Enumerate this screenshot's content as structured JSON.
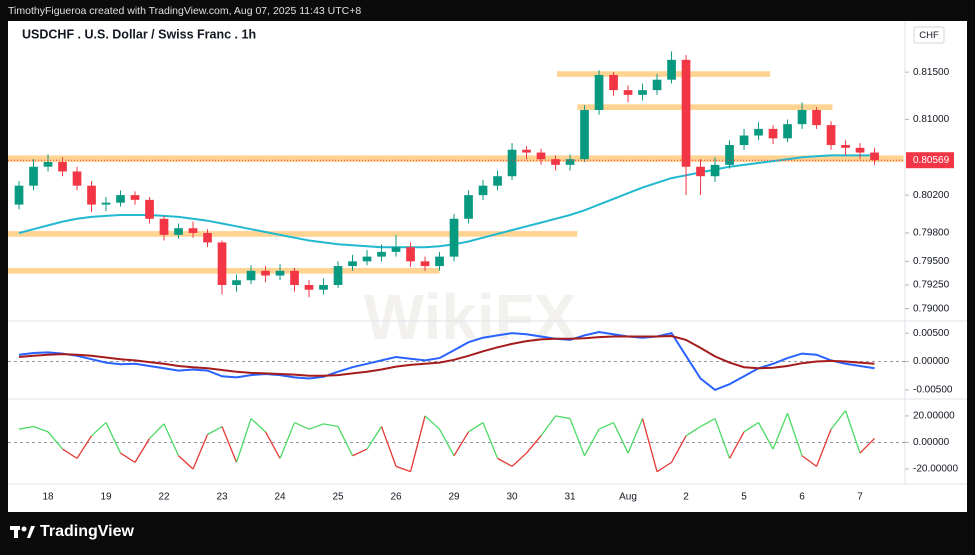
{
  "header": "TimothyFigueroa created with TradingView.com, Aug 07, 2025 11:43 UTC+8",
  "footer": "TradingView",
  "watermark": "WikiFX",
  "currency": "CHF",
  "chart_data": [
    {
      "type": "candlestick",
      "title": "USDCHF . U.S. Dollar / Swiss Franc . 1h",
      "up_color": "#089981",
      "down_color": "#f23645",
      "x": [
        -2,
        -1,
        0,
        1,
        2,
        3,
        4,
        5,
        6,
        7,
        8,
        9,
        10,
        11,
        12,
        13,
        14,
        15,
        16,
        17,
        18,
        19,
        20,
        21,
        22,
        23,
        24,
        25,
        26,
        27,
        28,
        29,
        30,
        31,
        32,
        33,
        34,
        35,
        36,
        37,
        38,
        39,
        40,
        41,
        42,
        43,
        44,
        45,
        46,
        47,
        48,
        49,
        50,
        51,
        52,
        53,
        54,
        55,
        56,
        57
      ],
      "open": [
        0.801,
        0.803,
        0.805,
        0.8055,
        0.8045,
        0.803,
        0.801,
        0.8012,
        0.802,
        0.8015,
        0.7995,
        0.7978,
        0.7985,
        0.798,
        0.797,
        0.7925,
        0.793,
        0.794,
        0.7935,
        0.794,
        0.7925,
        0.792,
        0.7925,
        0.7945,
        0.795,
        0.7955,
        0.796,
        0.7965,
        0.795,
        0.7945,
        0.7955,
        0.7995,
        0.802,
        0.803,
        0.804,
        0.8068,
        0.8065,
        0.8058,
        0.8052,
        0.8058,
        0.811,
        0.8147,
        0.8131,
        0.8126,
        0.8131,
        0.8142,
        0.8163,
        0.805,
        0.804,
        0.8052,
        0.8073,
        0.8083,
        0.809,
        0.808,
        0.8095,
        0.811,
        0.8094,
        0.8073,
        0.807,
        0.8065
      ],
      "high": [
        0.8035,
        0.8058,
        0.8063,
        0.806,
        0.805,
        0.8035,
        0.8018,
        0.8025,
        0.8024,
        0.8018,
        0.7998,
        0.799,
        0.7992,
        0.7984,
        0.7972,
        0.7936,
        0.7946,
        0.7945,
        0.7947,
        0.7943,
        0.793,
        0.7932,
        0.795,
        0.7957,
        0.7962,
        0.7968,
        0.7978,
        0.797,
        0.7955,
        0.796,
        0.8,
        0.8025,
        0.8036,
        0.8046,
        0.8075,
        0.8072,
        0.8069,
        0.8062,
        0.8063,
        0.8115,
        0.8152,
        0.815,
        0.8136,
        0.8138,
        0.8148,
        0.8172,
        0.8168,
        0.8058,
        0.806,
        0.8078,
        0.809,
        0.8097,
        0.8094,
        0.81,
        0.8118,
        0.8113,
        0.8098,
        0.8078,
        0.8075,
        0.807
      ],
      "low": [
        0.8005,
        0.8025,
        0.8045,
        0.804,
        0.8025,
        0.8002,
        0.8003,
        0.8008,
        0.801,
        0.799,
        0.7972,
        0.7974,
        0.7975,
        0.7965,
        0.7915,
        0.7918,
        0.7926,
        0.7928,
        0.793,
        0.7918,
        0.7912,
        0.7915,
        0.7922,
        0.794,
        0.7946,
        0.795,
        0.7955,
        0.7944,
        0.794,
        0.794,
        0.795,
        0.799,
        0.8015,
        0.8025,
        0.8036,
        0.8058,
        0.8052,
        0.8046,
        0.8046,
        0.8055,
        0.8105,
        0.8125,
        0.8118,
        0.812,
        0.8126,
        0.8138,
        0.802,
        0.802,
        0.8034,
        0.8048,
        0.8068,
        0.8078,
        0.8074,
        0.8076,
        0.809,
        0.809,
        0.8068,
        0.8062,
        0.8058,
        0.8052
      ],
      "close": [
        0.803,
        0.805,
        0.8055,
        0.8045,
        0.803,
        0.801,
        0.8012,
        0.802,
        0.8015,
        0.7995,
        0.7978,
        0.7985,
        0.798,
        0.797,
        0.7925,
        0.793,
        0.794,
        0.7935,
        0.794,
        0.7925,
        0.792,
        0.7925,
        0.7945,
        0.795,
        0.7955,
        0.796,
        0.7965,
        0.795,
        0.7945,
        0.7955,
        0.7995,
        0.802,
        0.803,
        0.804,
        0.8068,
        0.8065,
        0.8058,
        0.8052,
        0.8058,
        0.811,
        0.8147,
        0.8131,
        0.8126,
        0.8131,
        0.8142,
        0.8163,
        0.805,
        0.804,
        0.8052,
        0.8073,
        0.8083,
        0.809,
        0.808,
        0.8095,
        0.811,
        0.8094,
        0.8073,
        0.807,
        0.8065,
        0.8057
      ],
      "ma": {
        "color": "#22b8cf",
        "values": [
          0.798,
          0.7984,
          0.7988,
          0.7992,
          0.7995,
          0.7997,
          0.7998,
          0.7999,
          0.7999,
          0.7999,
          0.7998,
          0.7997,
          0.7995,
          0.7993,
          0.799,
          0.7987,
          0.7984,
          0.7981,
          0.7978,
          0.7975,
          0.7972,
          0.797,
          0.7968,
          0.7967,
          0.7966,
          0.7965,
          0.7965,
          0.7965,
          0.7965,
          0.7966,
          0.7968,
          0.7971,
          0.7975,
          0.7979,
          0.7983,
          0.7987,
          0.7991,
          0.7995,
          0.7999,
          0.8004,
          0.801,
          0.8016,
          0.8022,
          0.8028,
          0.8033,
          0.8038,
          0.8041,
          0.8044,
          0.8047,
          0.805,
          0.8052,
          0.8054,
          0.8056,
          0.8058,
          0.806,
          0.8061,
          0.8062,
          0.8062,
          0.8062,
          0.8062
        ]
      },
      "zones": [
        {
          "x": [
            35.1,
            49.8
          ],
          "y": [
            0.8145,
            0.8151
          ]
        },
        {
          "x": [
            36.5,
            54.1
          ],
          "y": [
            0.811,
            0.8116
          ]
        },
        {
          "x": [
            -2.76,
            59
          ],
          "y": [
            0.8055,
            0.8062
          ]
        },
        {
          "x": [
            -2.76,
            36.5
          ],
          "y": [
            0.7976,
            0.7982
          ]
        },
        {
          "x": [
            -2.76,
            27
          ],
          "y": [
            0.7937,
            0.7943
          ]
        }
      ],
      "zone_color": "#ffcc80",
      "last_price": 0.80569,
      "last_price_color": "#f23645",
      "xlim": [
        -2.76,
        59.1
      ],
      "xticks": [
        {
          "value": 0,
          "label": "18"
        },
        {
          "value": 4,
          "label": "19"
        },
        {
          "value": 8,
          "label": "22"
        },
        {
          "value": 12,
          "label": "23"
        },
        {
          "value": 16,
          "label": "24"
        },
        {
          "value": 20,
          "label": "25"
        },
        {
          "value": 24,
          "label": "26"
        },
        {
          "value": 28,
          "label": "29"
        },
        {
          "value": 32,
          "label": "30"
        },
        {
          "value": 36,
          "label": "31"
        },
        {
          "value": 40,
          "label": "Aug"
        },
        {
          "value": 44,
          "label": "2"
        },
        {
          "value": 48,
          "label": "5"
        },
        {
          "value": 52,
          "label": "6"
        },
        {
          "value": 56,
          "label": "7"
        }
      ],
      "ylim": [
        0.7888,
        0.8203
      ],
      "yticks": [
        {
          "value": 0.815,
          "label": "0.81500"
        },
        {
          "value": 0.81,
          "label": "0.81000"
        },
        {
          "value": 0.802,
          "label": "0.80200"
        },
        {
          "value": 0.798,
          "label": "0.79800"
        },
        {
          "value": 0.795,
          "label": "0.79500"
        },
        {
          "value": 0.7925,
          "label": "0.79250"
        },
        {
          "value": 0.79,
          "label": "0.79000"
        }
      ]
    },
    {
      "type": "line",
      "series": [
        {
          "color": "#2962ff",
          "values": [
            0.0012,
            0.0015,
            0.0016,
            0.0014,
            0.001,
            0.0004,
            -0.0002,
            -0.0005,
            -0.0004,
            -0.0008,
            -0.0012,
            -0.0016,
            -0.0014,
            -0.0016,
            -0.0026,
            -0.0028,
            -0.0024,
            -0.0022,
            -0.0024,
            -0.0028,
            -0.003,
            -0.0027,
            -0.0018,
            -0.001,
            -0.0004,
            0.0002,
            0.0008,
            0.0005,
            0.0002,
            0.0006,
            0.002,
            0.0034,
            0.0042,
            0.0046,
            0.005,
            0.0048,
            0.0044,
            0.004,
            0.0038,
            0.0046,
            0.0052,
            0.0048,
            0.0044,
            0.0042,
            0.0044,
            0.005,
            0.001,
            -0.003,
            -0.005,
            -0.004,
            -0.0026,
            -0.0012,
            -0.0004,
            0.0006,
            0.0014,
            0.0012,
            0.0002,
            -0.0004,
            -0.0008,
            -0.0012
          ]
        },
        {
          "color": "#a51c1c",
          "values": [
            0.0008,
            0.001,
            0.0012,
            0.0013,
            0.0012,
            0.001,
            0.0007,
            0.0004,
            0.0002,
            -0.0001,
            -0.0004,
            -0.0008,
            -0.001,
            -0.0012,
            -0.0015,
            -0.0018,
            -0.002,
            -0.0021,
            -0.0022,
            -0.0023,
            -0.0025,
            -0.0025,
            -0.0024,
            -0.0021,
            -0.0018,
            -0.0014,
            -0.0009,
            -0.0006,
            -0.0004,
            -0.0002,
            0.0003,
            0.001,
            0.0018,
            0.0025,
            0.0031,
            0.0036,
            0.0039,
            0.004,
            0.004,
            0.0041,
            0.0043,
            0.0044,
            0.0044,
            0.0044,
            0.0044,
            0.0045,
            0.0038,
            0.0024,
            0.0009,
            -0.0002,
            -0.001,
            -0.0012,
            -0.0011,
            -0.0008,
            -0.0003,
            0.0,
            0.0001,
            0.0,
            -0.0002,
            -0.0004
          ]
        }
      ],
      "ylim": [
        -0.00643,
        0.00696
      ],
      "yticks": [
        {
          "value": 0.005,
          "label": "0.00500"
        },
        {
          "value": 0,
          "label": "0.00000"
        },
        {
          "value": -0.005,
          "label": "-0.00500"
        }
      ]
    },
    {
      "type": "oscillator",
      "pos_color": "#4cd964",
      "neg_color": "#e53935",
      "values": [
        10,
        12,
        8,
        -5,
        -12,
        5,
        15,
        -8,
        -15,
        3,
        14,
        -10,
        -20,
        6,
        12,
        -15,
        18,
        8,
        -12,
        15,
        10,
        14,
        12,
        -10,
        -5,
        12,
        -18,
        -22,
        20,
        10,
        -10,
        8,
        15,
        -12,
        -18,
        -8,
        5,
        20,
        18,
        -10,
        10,
        15,
        -8,
        18,
        -22,
        -15,
        5,
        12,
        18,
        -12,
        8,
        15,
        -5,
        22,
        -10,
        -18,
        10,
        24,
        -8,
        3
      ],
      "ylim": [
        -29.8,
        32
      ],
      "yticks": [
        {
          "value": 20,
          "label": "20.00000"
        },
        {
          "value": 0,
          "label": "0.00000"
        },
        {
          "value": -20,
          "label": "-20.00000"
        }
      ]
    }
  ]
}
